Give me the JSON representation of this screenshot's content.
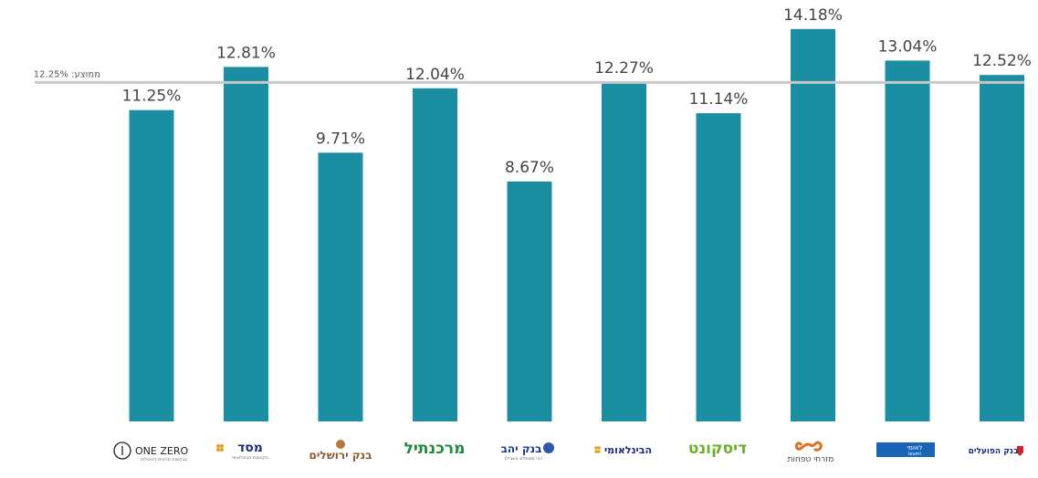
{
  "chart_data": {
    "type": "bar",
    "categories": [
      "ONE ZERO",
      "מסד",
      "בנק ירושלים",
      "מרכנתיל",
      "בנק יהב",
      "הבינלאומי",
      "דיסקונט",
      "מזרחי טפחות",
      "לאומי",
      "בנק הפועלים"
    ],
    "values": [
      11.25,
      12.81,
      9.71,
      12.04,
      8.67,
      12.27,
      11.14,
      14.18,
      13.04,
      12.52
    ],
    "value_labels": [
      "11.25%",
      "12.81%",
      "9.71%",
      "12.04%",
      "8.67%",
      "12.27%",
      "11.14%",
      "14.18%",
      "13.04%",
      "12.52%"
    ],
    "average": 12.25,
    "average_label": "ממוצע: 12.25%",
    "title": "",
    "xlabel": "",
    "ylabel": "",
    "ylim": [
      0,
      14.9
    ],
    "grid": false,
    "legend": "none",
    "bar_color": "#1b8fa1",
    "average_line_color": "#c8c8c8"
  },
  "logos": {
    "onezero": {
      "text": "ONE ZERO",
      "sub": "בנקאות פרטית דיגיטלית"
    },
    "masad": {
      "text": "מסד",
      "sub": "בקבוצת הבינלאומי"
    },
    "jerusalem": {
      "text": "בנק ירושלים"
    },
    "mercantile": {
      "text": "מרכנתיל"
    },
    "yahav": {
      "text": "בנק יהב",
      "sub": "הכי משתלם בשבילך"
    },
    "beinleumi": {
      "text": "הבינלאומי"
    },
    "discount": {
      "text": "דיסקונט"
    },
    "mizrahi": {
      "text": "מזרחי טפחות"
    },
    "leumi": {
      "text": "לאומי",
      "sub": "leumi"
    },
    "hapoalim": {
      "text": "בנק הפועלים"
    }
  }
}
